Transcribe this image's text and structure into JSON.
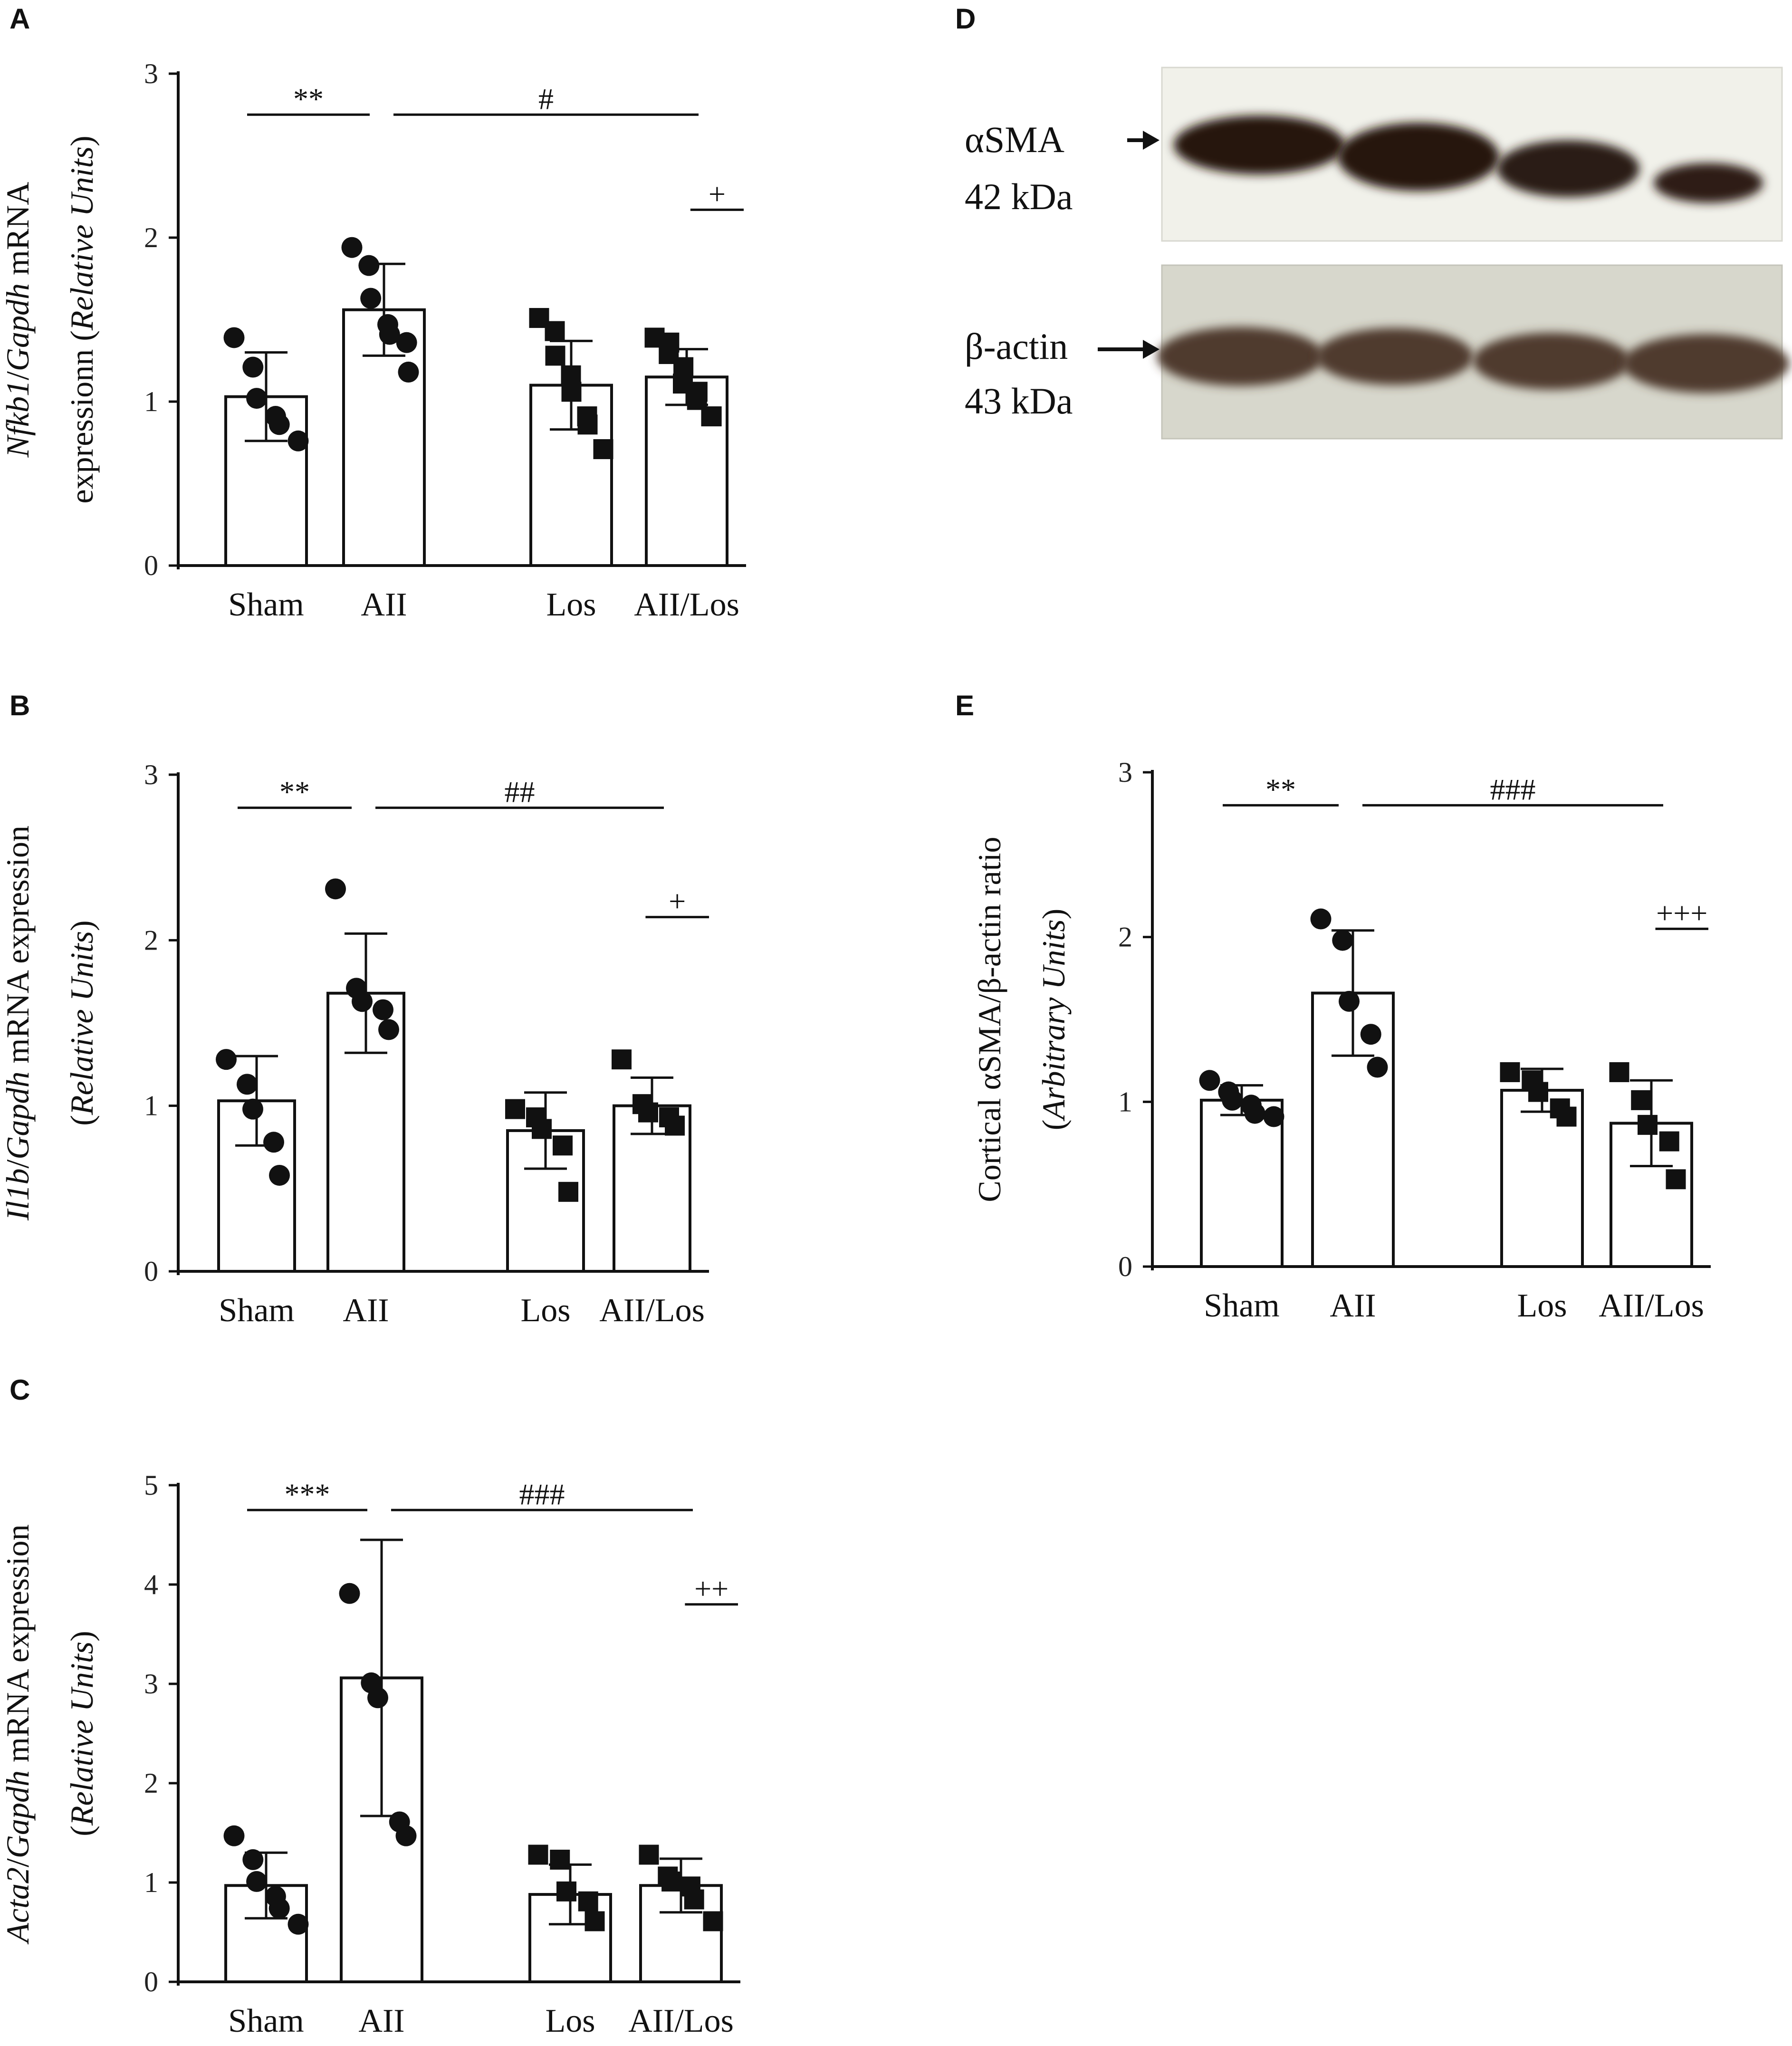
{
  "chart_data": [
    {
      "panel": "A",
      "type": "bar",
      "categories": [
        "Sham",
        "AII",
        "Los",
        "AII/Los"
      ],
      "values": [
        1.03,
        1.56,
        1.1,
        1.15
      ],
      "errors": [
        0.27,
        0.28,
        0.27,
        0.17
      ],
      "points": [
        [
          1.39,
          1.21,
          1.02,
          0.91,
          0.86,
          0.76
        ],
        [
          1.94,
          1.83,
          1.63,
          1.47,
          1.41,
          1.36,
          1.18
        ],
        [
          1.51,
          1.43,
          1.28,
          1.16,
          1.06,
          0.91,
          0.86,
          0.71
        ],
        [
          1.39,
          1.36,
          1.29,
          1.21,
          1.11,
          1.06,
          1.01,
          0.91,
          0.91
        ]
      ],
      "markers": [
        "circle",
        "circle",
        "square",
        "square"
      ],
      "ylabel_parts": [
        "Nfkb1",
        "/",
        "Gapdh",
        " mRNA"
      ],
      "ylabel_line2_parts": [
        "expressionn (",
        "Relative Units",
        ")"
      ],
      "yticks": [
        "0",
        "1",
        "2",
        "3"
      ],
      "ylim": [
        0,
        3
      ],
      "significance": [
        {
          "label": "**",
          "from": 0,
          "to": 1,
          "y": 2.75
        },
        {
          "label": "#",
          "from": 1,
          "to": 3,
          "y": 2.75
        },
        {
          "label": "+",
          "from": 2.95,
          "to": 3.45,
          "y": 2.17
        }
      ]
    },
    {
      "panel": "B",
      "type": "bar",
      "categories": [
        "Sham",
        "AII",
        "Los",
        "AII/Los"
      ],
      "values": [
        1.03,
        1.68,
        0.85,
        1.0
      ],
      "errors": [
        0.27,
        0.36,
        0.23,
        0.17
      ],
      "points": [
        [
          1.28,
          1.13,
          0.98,
          0.78,
          0.58
        ],
        [
          2.31,
          1.71,
          1.63,
          1.58,
          1.46
        ],
        [
          0.98,
          0.93,
          0.86,
          0.76,
          0.48
        ],
        [
          1.28,
          1.01,
          0.96,
          0.93,
          0.88
        ]
      ],
      "markers": [
        "circle",
        "circle",
        "square",
        "square"
      ],
      "ylabel_parts": [
        "Il1b",
        "/",
        "Gapdh",
        " mRNA expression"
      ],
      "ylabel_line2_parts": [
        "(",
        "Relative Units",
        ")"
      ],
      "yticks": [
        "0",
        "1",
        "2",
        "3"
      ],
      "ylim": [
        0,
        3
      ],
      "significance": [
        {
          "label": "**",
          "from": 0,
          "to": 1,
          "y": 2.8
        },
        {
          "label": "##",
          "from": 1,
          "to": 3,
          "y": 2.8
        },
        {
          "label": "+",
          "from": 2.85,
          "to": 3.45,
          "y": 2.14
        }
      ]
    },
    {
      "panel": "C",
      "type": "bar",
      "categories": [
        "Sham",
        "AII",
        "Los",
        "AII/Los"
      ],
      "values": [
        0.97,
        3.06,
        0.88,
        0.97
      ],
      "errors": [
        0.33,
        1.39,
        0.3,
        0.27
      ],
      "points": [
        [
          1.47,
          1.23,
          1.01,
          0.86,
          0.74,
          0.58
        ],
        [
          3.91,
          3.01,
          2.86,
          1.61,
          1.47
        ],
        [
          1.28,
          1.23,
          0.91,
          0.81,
          0.61
        ],
        [
          1.28,
          1.06,
          1.01,
          0.96,
          0.83,
          0.61
        ]
      ],
      "markers": [
        "circle",
        "circle",
        "square",
        "square"
      ],
      "ylabel_parts": [
        "Acta2",
        "/",
        "Gapdh",
        " mRNA expression"
      ],
      "ylabel_line2_parts": [
        "(",
        "Relative Units",
        ")"
      ],
      "yticks": [
        "0",
        "1",
        "2",
        "3",
        "4",
        "5"
      ],
      "ylim": [
        0,
        5
      ],
      "significance": [
        {
          "label": "***",
          "from": 0,
          "to": 1,
          "y": 4.75
        },
        {
          "label": "###",
          "from": 1,
          "to": 3,
          "y": 4.75
        },
        {
          "label": "++",
          "from": 2.95,
          "to": 3.45,
          "y": 3.8
        }
      ]
    },
    {
      "panel": "E",
      "type": "bar",
      "categories": [
        "Sham",
        "AII",
        "Los",
        "AII/Los"
      ],
      "values": [
        1.01,
        1.66,
        1.07,
        0.87
      ],
      "errors": [
        0.09,
        0.38,
        0.13,
        0.26
      ],
      "points": [
        [
          1.13,
          1.06,
          1.01,
          0.98,
          0.93,
          0.91
        ],
        [
          2.11,
          1.98,
          1.61,
          1.41,
          1.21
        ],
        [
          1.18,
          1.13,
          1.06,
          0.96,
          0.91
        ],
        [
          1.18,
          1.01,
          0.86,
          0.76,
          0.53
        ]
      ],
      "markers": [
        "circle",
        "circle",
        "square",
        "square"
      ],
      "ylabel_parts": [
        "Cortical αSMA/β-actin ratio"
      ],
      "ylabel_line2_parts": [
        "(",
        "Arbitrary Units",
        ")"
      ],
      "yticks": [
        "0",
        "1",
        "2",
        "3"
      ],
      "ylim": [
        0,
        3
      ],
      "significance": [
        {
          "label": "**",
          "from": 0,
          "to": 1,
          "y": 2.8
        },
        {
          "label": "###",
          "from": 1,
          "to": 3,
          "y": 2.8
        },
        {
          "label": "+++",
          "from": 2.95,
          "to": 3.45,
          "y": 2.05
        }
      ]
    }
  ],
  "blot": {
    "panel": "D",
    "top": {
      "name": "αSMA",
      "size": "42 kDa"
    },
    "bottom": {
      "name": "β-actin",
      "size": "43 kDa"
    }
  }
}
